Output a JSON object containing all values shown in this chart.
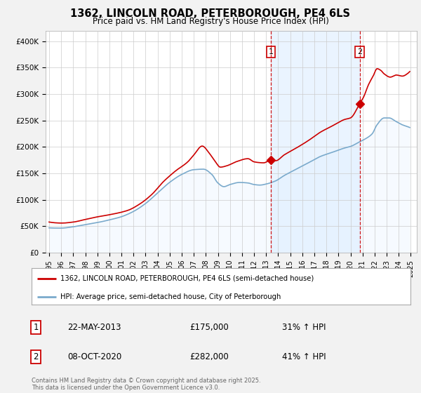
{
  "title": "1362, LINCOLN ROAD, PETERBOROUGH, PE4 6LS",
  "subtitle": "Price paid vs. HM Land Registry's House Price Index (HPI)",
  "bg_color": "#f2f2f2",
  "plot_bg_color": "#ffffff",
  "red_line_color": "#cc0000",
  "blue_line_color": "#7aaacc",
  "blue_fill_color": "#ddeeff",
  "shade_color": "#ddeeff",
  "grid_color": "#cccccc",
  "ylim": [
    0,
    420000
  ],
  "yticks": [
    0,
    50000,
    100000,
    150000,
    200000,
    250000,
    300000,
    350000,
    400000
  ],
  "ytick_labels": [
    "£0",
    "£50K",
    "£100K",
    "£150K",
    "£200K",
    "£250K",
    "£300K",
    "£350K",
    "£400K"
  ],
  "xlim_start": 1994.7,
  "xlim_end": 2025.5,
  "xticks": [
    1995,
    1996,
    1997,
    1998,
    1999,
    2000,
    2001,
    2002,
    2003,
    2004,
    2005,
    2006,
    2007,
    2008,
    2009,
    2010,
    2011,
    2012,
    2013,
    2014,
    2015,
    2016,
    2017,
    2018,
    2019,
    2020,
    2021,
    2022,
    2023,
    2024,
    2025
  ],
  "marker1_x": 2013.39,
  "marker1_y": 175000,
  "marker2_x": 2020.77,
  "marker2_y": 282000,
  "vline1_x": 2013.39,
  "vline2_x": 2020.77,
  "sale1_date": "22-MAY-2013",
  "sale1_price": "£175,000",
  "sale1_hpi": "31% ↑ HPI",
  "sale2_date": "08-OCT-2020",
  "sale2_price": "£282,000",
  "sale2_hpi": "41% ↑ HPI",
  "legend_label_red": "1362, LINCOLN ROAD, PETERBOROUGH, PE4 6LS (semi-detached house)",
  "legend_label_blue": "HPI: Average price, semi-detached house, City of Peterborough",
  "footnote": "Contains HM Land Registry data © Crown copyright and database right 2025.\nThis data is licensed under the Open Government Licence v3.0."
}
